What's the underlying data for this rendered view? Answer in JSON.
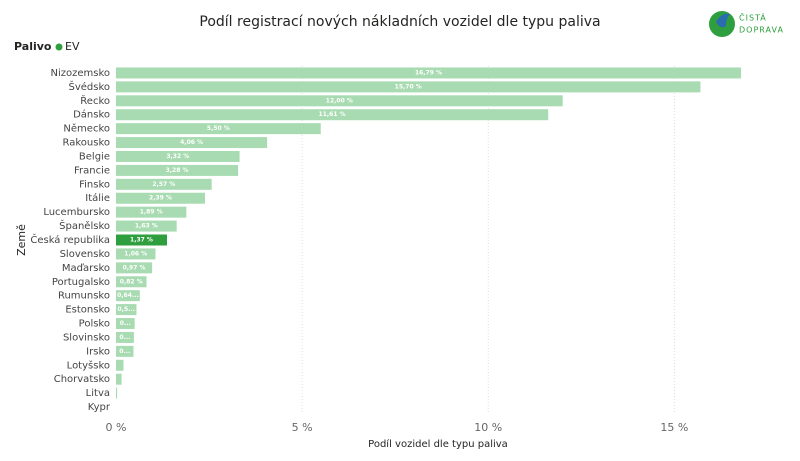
{
  "logo": {
    "line1": "ČISTÁ",
    "line2": "DOPRAVA"
  },
  "chart_data": {
    "type": "bar",
    "orientation": "horizontal",
    "title": "Podíl registrací nových nákladních vozidel dle typu paliva",
    "legend_title": "Palivo",
    "x_label": "Podíl vozidel dle typu paliva",
    "y_label": "Země",
    "categories": [
      "Nizozemsko",
      "Švédsko",
      "Řecko",
      "Dánsko",
      "Německo",
      "Rakousko",
      "Belgie",
      "Francie",
      "Finsko",
      "Itálie",
      "Lucembursko",
      "Španělsko",
      "Česká republika",
      "Slovensko",
      "Maďarsko",
      "Portugalsko",
      "Rumunsko",
      "Estonsko",
      "Polsko",
      "Slovinsko",
      "Irsko",
      "Lotyšsko",
      "Chorvatsko",
      "Litva",
      "Kypr"
    ],
    "series": [
      {
        "name": "EV",
        "color": "#2e9e3e",
        "values": [
          16.79,
          15.7,
          12.0,
          11.61,
          5.5,
          4.06,
          3.32,
          3.28,
          2.57,
          2.39,
          1.89,
          1.63,
          1.37,
          1.06,
          0.97,
          0.82,
          0.64,
          0.55,
          0.5,
          0.48,
          0.47,
          0.2,
          0.15,
          0.03,
          0
        ],
        "value_labels": [
          "16,79 %",
          "15,70 %",
          "12,00 %",
          "11,61 %",
          "5,50 %",
          "4,06 %",
          "3,32 %",
          "3,28 %",
          "2,57 %",
          "2,39 %",
          "1,89 %",
          "1,63 %",
          "1,37 %",
          "1,06 %",
          "0,97 %",
          "0,82 %",
          "0,64...",
          "0,5...",
          "0...",
          "0...",
          "0...",
          null,
          null,
          null,
          null
        ],
        "colors": [
          "#a8dbb1",
          "#a8dbb1",
          "#a8dbb1",
          "#a8dbb1",
          "#a8dbb1",
          "#a8dbb1",
          "#a8dbb1",
          "#a8dbb1",
          "#a8dbb1",
          "#a8dbb1",
          "#a8dbb1",
          "#a8dbb1",
          "#2e9e3e",
          "#a8dbb1",
          "#a8dbb1",
          "#a8dbb1",
          "#a8dbb1",
          "#a8dbb1",
          "#a8dbb1",
          "#a8dbb1",
          "#a8dbb1",
          "#a8dbb1",
          "#a8dbb1",
          "#a8dbb1",
          "#a8dbb1"
        ]
      }
    ],
    "xlim": [
      0,
      17.3
    ],
    "xticks": [
      {
        "value": 0,
        "label": "0 %"
      },
      {
        "value": 5,
        "label": "5 %"
      },
      {
        "value": 10,
        "label": "10 %"
      },
      {
        "value": 15,
        "label": "15 %"
      }
    ],
    "grid": true
  }
}
